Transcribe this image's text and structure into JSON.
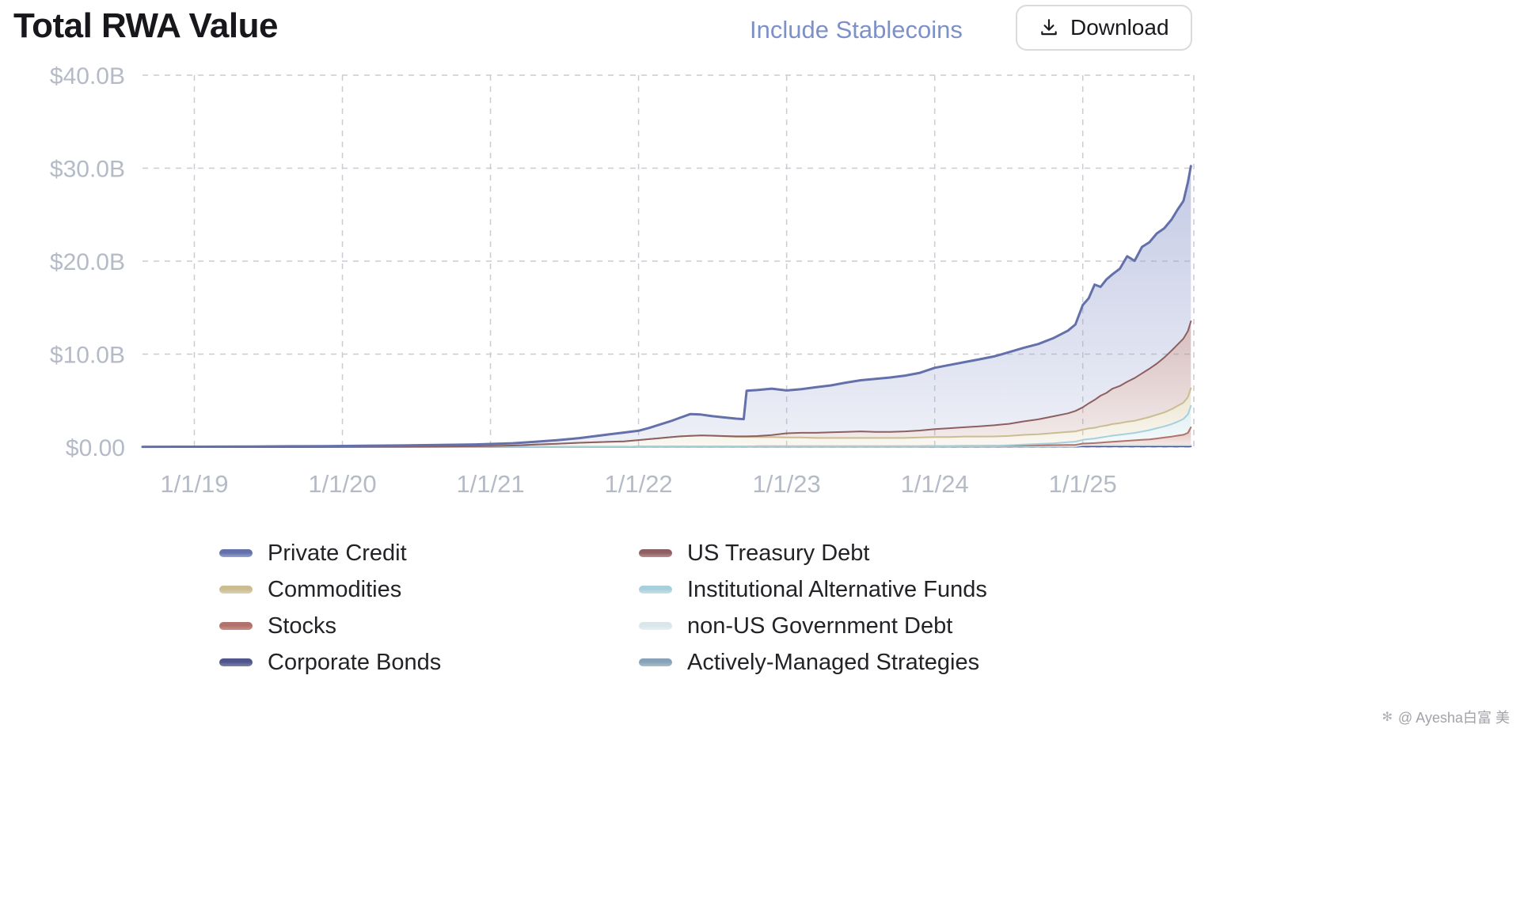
{
  "header": {
    "title": "Total RWA Value",
    "include_stablecoins_label": "Include Stablecoins",
    "download_label": "Download"
  },
  "watermark": {
    "icon": "✻",
    "text": "@ Ayesha白富 美"
  },
  "chart_data": {
    "type": "area",
    "stacked": true,
    "title": "Total RWA Value",
    "grid": "dashed",
    "legend_position": "bottom",
    "x_axis": {
      "range": [
        2018.65,
        2025.75
      ],
      "ticks": [
        {
          "x": 2019,
          "label": "1/1/19"
        },
        {
          "x": 2020,
          "label": "1/1/20"
        },
        {
          "x": 2021,
          "label": "1/1/21"
        },
        {
          "x": 2022,
          "label": "1/1/22"
        },
        {
          "x": 2023,
          "label": "1/1/23"
        },
        {
          "x": 2024,
          "label": "1/1/24"
        },
        {
          "x": 2025,
          "label": "1/1/25"
        }
      ]
    },
    "y_axis": {
      "max": 40,
      "unit": "USD billions",
      "ticks": [
        {
          "v": 0,
          "label": "$0.00"
        },
        {
          "v": 10,
          "label": "$10.0B"
        },
        {
          "v": 20,
          "label": "$20.0B"
        },
        {
          "v": 30,
          "label": "$30.0B"
        },
        {
          "v": 40,
          "label": "$40.0B"
        }
      ]
    },
    "x": [
      2018.65,
      2018.9,
      2019.15,
      2019.4,
      2019.65,
      2019.9,
      2020.15,
      2020.4,
      2020.65,
      2020.9,
      2021.0,
      2021.15,
      2021.3,
      2021.45,
      2021.6,
      2021.7,
      2021.8,
      2021.9,
      2022.0,
      2022.07,
      2022.14,
      2022.21,
      2022.28,
      2022.35,
      2022.42,
      2022.5,
      2022.58,
      2022.66,
      2022.71,
      2022.73,
      2022.8,
      2022.9,
      2023.0,
      2023.1,
      2023.2,
      2023.3,
      2023.4,
      2023.5,
      2023.6,
      2023.7,
      2023.8,
      2023.9,
      2024.0,
      2024.1,
      2024.2,
      2024.3,
      2024.4,
      2024.5,
      2024.6,
      2024.7,
      2024.8,
      2024.9,
      2024.95,
      2025.0,
      2025.04,
      2025.08,
      2025.12,
      2025.16,
      2025.2,
      2025.25,
      2025.3,
      2025.35,
      2025.4,
      2025.45,
      2025.5,
      2025.55,
      2025.6,
      2025.64,
      2025.68,
      2025.71,
      2025.73
    ],
    "series": [
      {
        "key": "corporate_bonds",
        "name": "Corporate Bonds",
        "line": "#4f558c",
        "fill": "#7d82ab",
        "values": [
          0,
          0,
          0,
          0,
          0,
          0,
          0.01,
          0.01,
          0.01,
          0.01,
          0.02,
          0.02,
          0.02,
          0.02,
          0.02,
          0.02,
          0.02,
          0.02,
          0.03,
          0.03,
          0.03,
          0.03,
          0.03,
          0.03,
          0.03,
          0.03,
          0.03,
          0.03,
          0.03,
          0.03,
          0.04,
          0.04,
          0.04,
          0.04,
          0.04,
          0.04,
          0.04,
          0.04,
          0.04,
          0.04,
          0.04,
          0.04,
          0.05,
          0.05,
          0.05,
          0.05,
          0.05,
          0.05,
          0.05,
          0.05,
          0.05,
          0.05,
          0.05,
          0.08,
          0.08,
          0.08,
          0.08,
          0.08,
          0.08,
          0.08,
          0.08,
          0.08,
          0.08,
          0.08,
          0.08,
          0.08,
          0.08,
          0.08,
          0.08,
          0.08,
          0.08
        ]
      },
      {
        "key": "actively_managed",
        "name": "Actively-Managed Strategies",
        "line": "#87a2b8",
        "fill": "#a9bfcd",
        "values": [
          0,
          0,
          0,
          0,
          0,
          0,
          0,
          0,
          0,
          0,
          0,
          0,
          0,
          0,
          0,
          0,
          0,
          0,
          0.01,
          0.01,
          0.01,
          0.01,
          0.01,
          0.01,
          0.01,
          0.01,
          0.01,
          0.01,
          0.01,
          0.01,
          0.02,
          0.02,
          0.02,
          0.02,
          0.02,
          0.02,
          0.02,
          0.02,
          0.02,
          0.02,
          0.02,
          0.02,
          0.03,
          0.03,
          0.03,
          0.03,
          0.03,
          0.03,
          0.03,
          0.03,
          0.03,
          0.03,
          0.03,
          0.1,
          0.1,
          0.1,
          0.1,
          0.1,
          0.1,
          0.1,
          0.1,
          0.1,
          0.1,
          0.1,
          0.1,
          0.1,
          0.1,
          0.1,
          0.1,
          0.1,
          0.1
        ]
      },
      {
        "key": "non_us_gov",
        "name": "non-US Government Debt",
        "line": "#d9e6ea",
        "fill": "#e7f0f2",
        "values": [
          0,
          0,
          0,
          0,
          0,
          0,
          0,
          0,
          0,
          0,
          0,
          0,
          0,
          0,
          0,
          0,
          0,
          0,
          0.01,
          0.01,
          0.01,
          0.01,
          0.01,
          0.01,
          0.01,
          0.01,
          0.01,
          0.01,
          0.01,
          0.01,
          0.02,
          0.02,
          0.02,
          0.02,
          0.02,
          0.02,
          0.02,
          0.02,
          0.02,
          0.02,
          0.02,
          0.02,
          0.03,
          0.03,
          0.03,
          0.03,
          0.03,
          0.03,
          0.03,
          0.03,
          0.03,
          0.03,
          0.03,
          0.05,
          0.05,
          0.05,
          0.05,
          0.05,
          0.05,
          0.05,
          0.05,
          0.05,
          0.05,
          0.05,
          0.05,
          0.05,
          0.05,
          0.05,
          0.05,
          0.05,
          0.05
        ]
      },
      {
        "key": "stocks",
        "name": "Stocks",
        "line": "#b0726b",
        "fill": "#c99189",
        "values": [
          0,
          0,
          0,
          0,
          0,
          0,
          0,
          0,
          0,
          0,
          0,
          0,
          0,
          0,
          0,
          0,
          0,
          0,
          0.01,
          0.01,
          0.01,
          0.01,
          0.01,
          0.01,
          0.01,
          0.01,
          0.01,
          0.01,
          0.01,
          0.01,
          0.01,
          0.01,
          0.01,
          0.01,
          0.01,
          0.01,
          0.01,
          0.01,
          0.01,
          0.01,
          0.01,
          0.01,
          0.02,
          0.02,
          0.03,
          0.03,
          0.04,
          0.04,
          0.06,
          0.08,
          0.1,
          0.12,
          0.13,
          0.15,
          0.18,
          0.2,
          0.25,
          0.3,
          0.35,
          0.4,
          0.45,
          0.5,
          0.55,
          0.6,
          0.7,
          0.8,
          0.9,
          1.0,
          1.1,
          1.3,
          1.9
        ]
      },
      {
        "key": "inst_alt_funds",
        "name": "Institutional Alternative Funds",
        "line": "#a8cfdc",
        "fill": "#c6e2ea",
        "values": [
          0,
          0,
          0,
          0,
          0,
          0,
          0,
          0,
          0,
          0,
          0,
          0,
          0,
          0,
          0,
          0,
          0,
          0,
          0,
          0,
          0,
          0,
          0,
          0,
          0,
          0,
          0,
          0,
          0,
          0,
          0,
          0,
          0,
          0,
          0,
          0,
          0,
          0,
          0,
          0,
          0,
          0,
          0,
          0,
          0,
          0,
          0,
          0.05,
          0.1,
          0.15,
          0.2,
          0.3,
          0.35,
          0.4,
          0.45,
          0.5,
          0.55,
          0.6,
          0.65,
          0.7,
          0.75,
          0.8,
          0.9,
          1.0,
          1.1,
          1.2,
          1.35,
          1.5,
          1.7,
          2.0,
          2.3
        ]
      },
      {
        "key": "commodities",
        "name": "Commodities",
        "line": "#cbbc92",
        "fill": "#ddd2ae",
        "values": [
          0,
          0,
          0,
          0,
          0,
          0.01,
          0.02,
          0.03,
          0.05,
          0.08,
          0.1,
          0.15,
          0.25,
          0.35,
          0.45,
          0.5,
          0.55,
          0.6,
          0.7,
          0.8,
          0.9,
          1.0,
          1.1,
          1.15,
          1.2,
          1.15,
          1.1,
          1.05,
          1.05,
          1.05,
          1.0,
          1.0,
          0.95,
          0.95,
          0.9,
          0.9,
          0.9,
          0.9,
          0.9,
          0.9,
          0.9,
          0.95,
          0.95,
          0.95,
          1.0,
          1.0,
          1.0,
          1.0,
          1.05,
          1.05,
          1.1,
          1.1,
          1.1,
          1.1,
          1.15,
          1.15,
          1.2,
          1.2,
          1.25,
          1.25,
          1.3,
          1.3,
          1.35,
          1.4,
          1.45,
          1.5,
          1.6,
          1.7,
          1.75,
          1.85,
          1.9
        ]
      },
      {
        "key": "us_treasury",
        "name": "US Treasury Debt",
        "line": "#8d5f62",
        "fill": "#b98d8d",
        "values": [
          0,
          0,
          0,
          0,
          0,
          0,
          0,
          0,
          0,
          0,
          0,
          0,
          0,
          0,
          0,
          0,
          0,
          0,
          0,
          0,
          0,
          0,
          0,
          0,
          0,
          0.02,
          0.03,
          0.05,
          0.05,
          0.05,
          0.1,
          0.2,
          0.45,
          0.5,
          0.55,
          0.6,
          0.65,
          0.7,
          0.65,
          0.65,
          0.7,
          0.75,
          0.85,
          0.95,
          1.0,
          1.1,
          1.2,
          1.3,
          1.45,
          1.6,
          1.8,
          2.0,
          2.2,
          2.4,
          2.7,
          3.0,
          3.3,
          3.5,
          3.8,
          4.0,
          4.3,
          4.6,
          4.9,
          5.2,
          5.5,
          5.9,
          6.3,
          6.6,
          6.9,
          7.1,
          7.2
        ]
      },
      {
        "key": "private_credit",
        "name": "Private Credit",
        "line": "#6470a9",
        "fill": "#97a3d0",
        "values": [
          0.03,
          0.04,
          0.05,
          0.07,
          0.09,
          0.1,
          0.12,
          0.14,
          0.17,
          0.2,
          0.22,
          0.25,
          0.3,
          0.38,
          0.5,
          0.65,
          0.8,
          0.95,
          1.0,
          1.2,
          1.45,
          1.7,
          2.0,
          2.35,
          2.25,
          2.1,
          2.0,
          1.9,
          1.85,
          4.9,
          4.95,
          5.0,
          4.6,
          4.7,
          4.9,
          5.05,
          5.3,
          5.5,
          5.7,
          5.85,
          6.0,
          6.2,
          6.6,
          6.8,
          7.0,
          7.2,
          7.4,
          7.7,
          7.9,
          8.1,
          8.4,
          8.9,
          9.3,
          11.0,
          11.3,
          12.4,
          11.7,
          12.2,
          12.3,
          12.6,
          13.5,
          12.6,
          13.6,
          13.6,
          14.0,
          13.9,
          14.1,
          14.5,
          14.8,
          16.0,
          16.7
        ]
      }
    ],
    "legend": {
      "columns": [
        [
          "private_credit",
          "commodities",
          "stocks",
          "corporate_bonds"
        ],
        [
          "us_treasury",
          "inst_alt_funds",
          "non_us_gov",
          "actively_managed"
        ]
      ]
    }
  }
}
